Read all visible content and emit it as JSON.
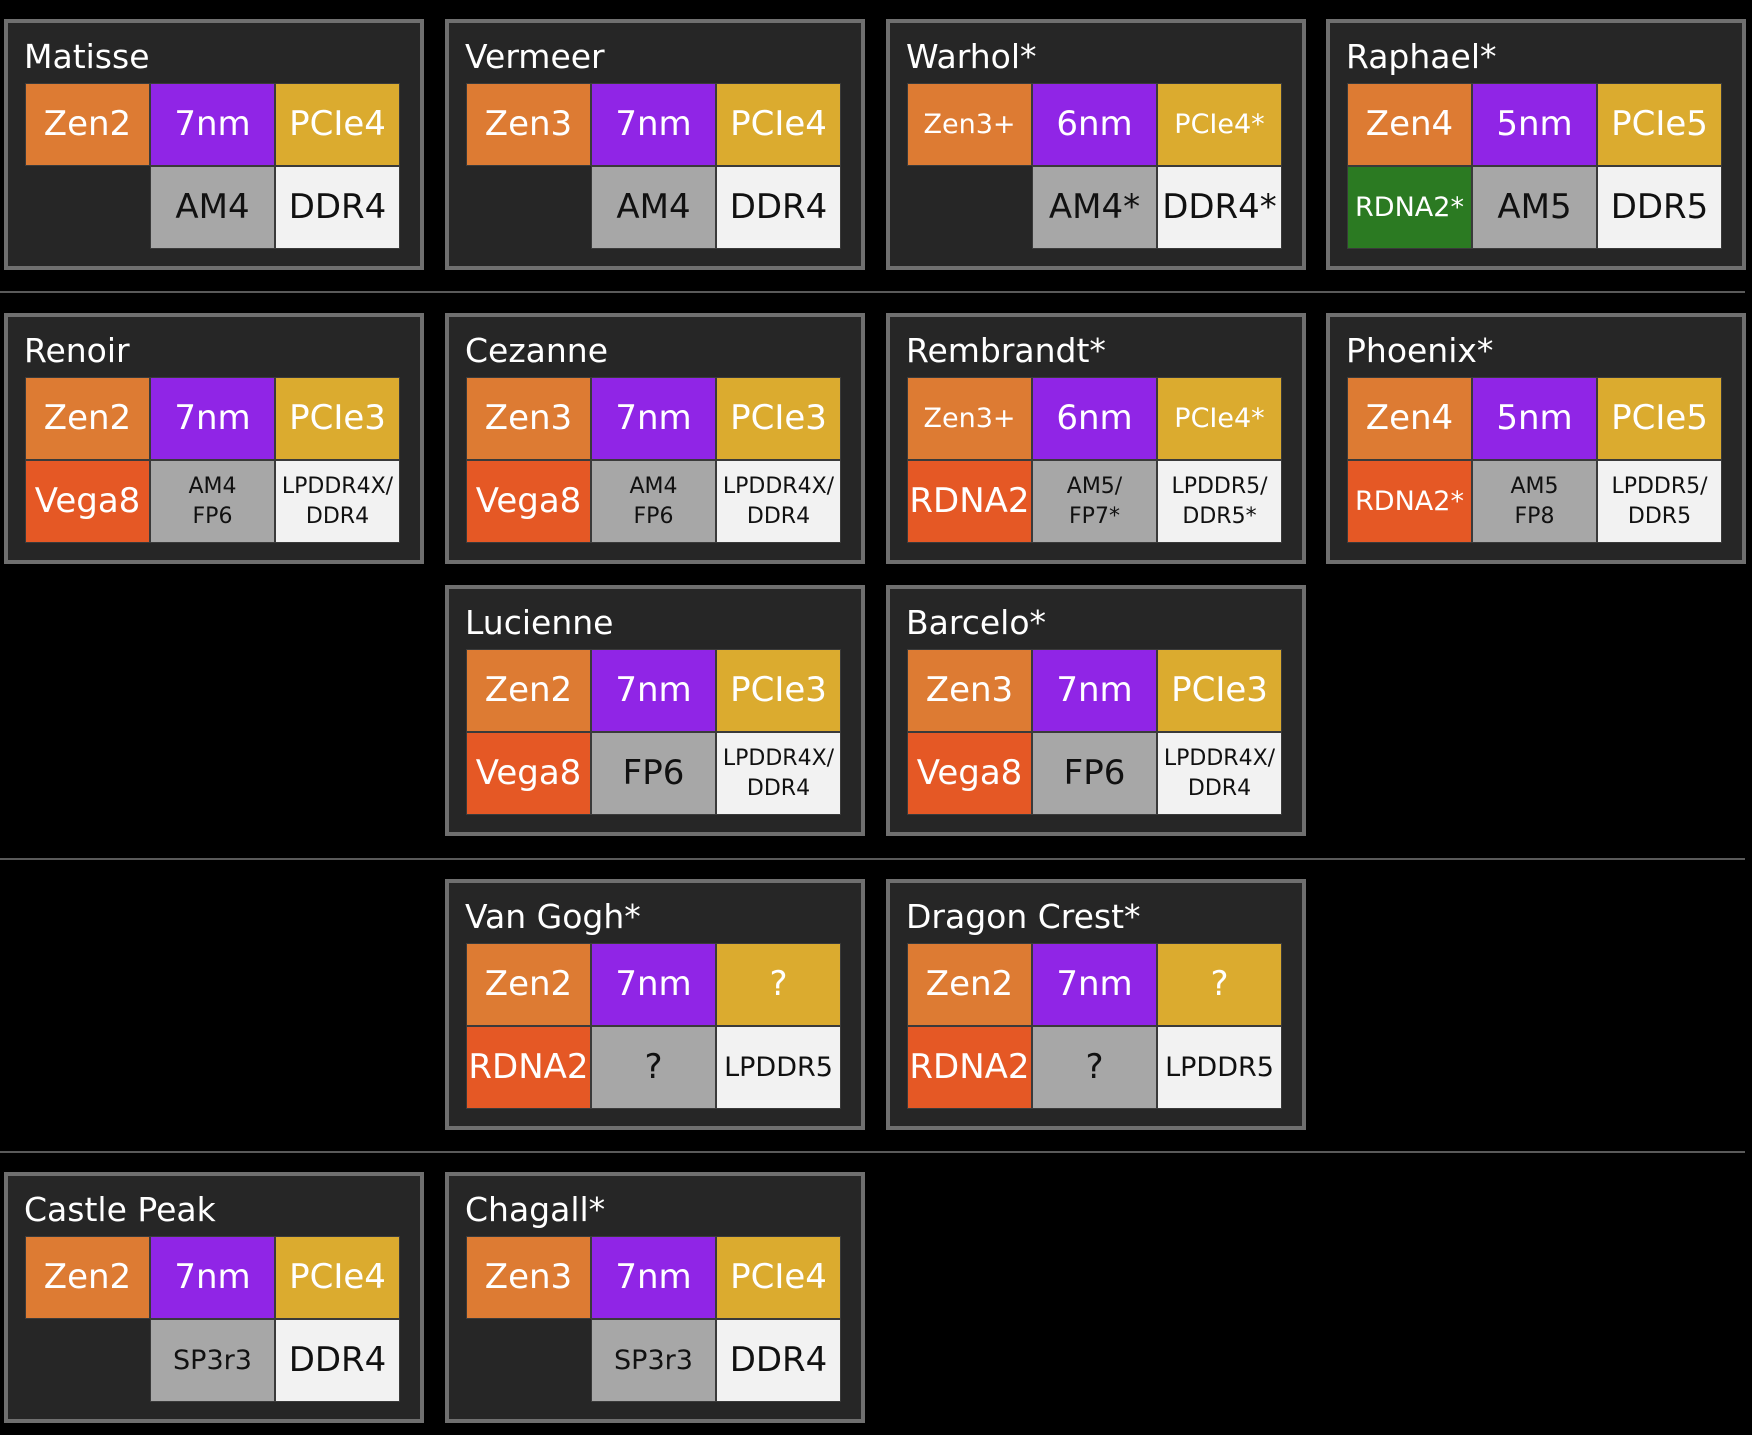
{
  "colors": {
    "background": "#000000",
    "card": "#262626",
    "card_border": "#6f6f6f",
    "cpu": "#dd7b33",
    "node": "#9025e6",
    "pcie": "#dbab2f",
    "graphics": "#e55825",
    "graphics_alt": "#2b7a22",
    "socket": "#a7a7a7",
    "memory": "#f2f2f2"
  },
  "cards": [
    {
      "name": "Matisse",
      "cpu": "Zen2",
      "node": "7nm",
      "pcie": "PCIe4",
      "gpu": "",
      "socket": "AM4",
      "memory": "DDR4"
    },
    {
      "name": "Vermeer",
      "cpu": "Zen3",
      "node": "7nm",
      "pcie": "PCIe4",
      "gpu": "",
      "socket": "AM4",
      "memory": "DDR4"
    },
    {
      "name": "Warhol*",
      "cpu": "Zen3+",
      "node": "6nm",
      "pcie": "PCIe4*",
      "gpu": "",
      "socket": "AM4*",
      "memory": "DDR4*"
    },
    {
      "name": "Raphael*",
      "cpu": "Zen4",
      "node": "5nm",
      "pcie": "PCIe5",
      "gpu": "RDNA2*",
      "socket": "AM5",
      "memory": "DDR5"
    },
    {
      "name": "Renoir",
      "cpu": "Zen2",
      "node": "7nm",
      "pcie": "PCIe3",
      "gpu": "Vega8",
      "socket": "AM4\nFP6",
      "memory": "LPDDR4X/\nDDR4"
    },
    {
      "name": "Cezanne",
      "cpu": "Zen3",
      "node": "7nm",
      "pcie": "PCIe3",
      "gpu": "Vega8",
      "socket": "AM4\nFP6",
      "memory": "LPDDR4X/\nDDR4"
    },
    {
      "name": "Rembrandt*",
      "cpu": "Zen3+",
      "node": "6nm",
      "pcie": "PCIe4*",
      "gpu": "RDNA2",
      "socket": "AM5/\nFP7*",
      "memory": "LPDDR5/\nDDR5*"
    },
    {
      "name": "Phoenix*",
      "cpu": "Zen4",
      "node": "5nm",
      "pcie": "PCIe5",
      "gpu": "RDNA2*",
      "socket": "AM5\nFP8",
      "memory": "LPDDR5/\nDDR5"
    },
    {
      "name": "Lucienne",
      "cpu": "Zen2",
      "node": "7nm",
      "pcie": "PCIe3",
      "gpu": "Vega8",
      "socket": "FP6",
      "memory": "LPDDR4X/\nDDR4"
    },
    {
      "name": "Barcelo*",
      "cpu": "Zen3",
      "node": "7nm",
      "pcie": "PCIe3",
      "gpu": "Vega8",
      "socket": "FP6",
      "memory": "LPDDR4X/\nDDR4"
    },
    {
      "name": "Van Gogh*",
      "cpu": "Zen2",
      "node": "7nm",
      "pcie": "?",
      "gpu": "RDNA2",
      "socket": "?",
      "memory": "LPDDR5"
    },
    {
      "name": "Dragon Crest*",
      "cpu": "Zen2",
      "node": "7nm",
      "pcie": "?",
      "gpu": "RDNA2",
      "socket": "?",
      "memory": "LPDDR5"
    },
    {
      "name": "Castle Peak",
      "cpu": "Zen2",
      "node": "7nm",
      "pcie": "PCIe4",
      "gpu": "",
      "socket": "SP3r3",
      "memory": "DDR4"
    },
    {
      "name": "Chagall*",
      "cpu": "Zen3",
      "node": "7nm",
      "pcie": "PCIe4",
      "gpu": "",
      "socket": "SP3r3",
      "memory": "DDR4"
    }
  ]
}
